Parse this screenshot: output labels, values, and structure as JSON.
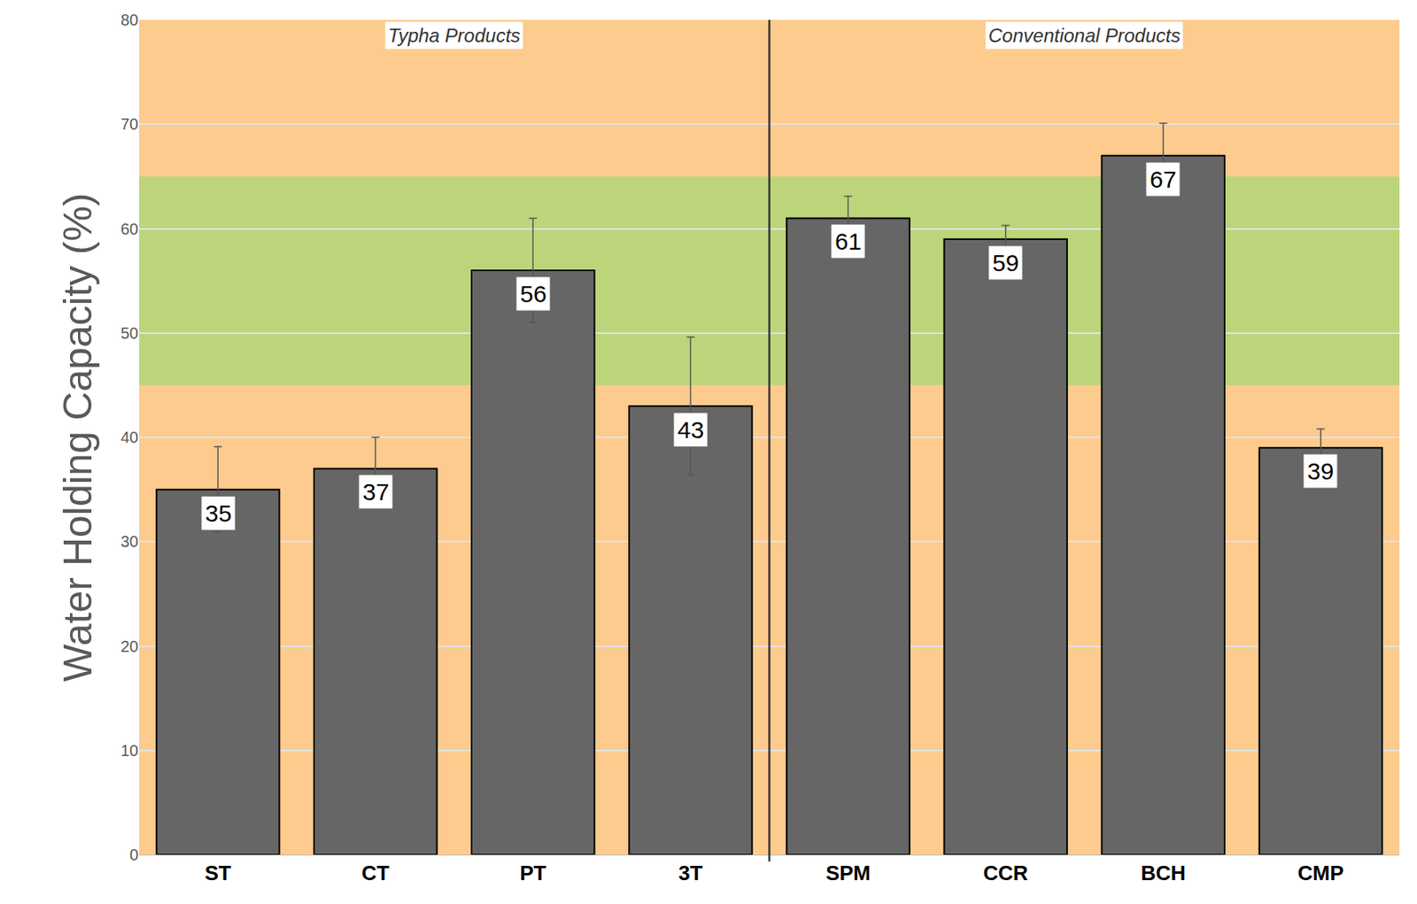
{
  "chart_data": {
    "type": "bar",
    "categories": [
      "ST",
      "CT",
      "PT",
      "3T",
      "SPM",
      "CCR",
      "BCH",
      "CMP"
    ],
    "values": [
      35,
      37,
      56,
      43,
      61,
      59,
      67,
      39
    ],
    "error": [
      4.1,
      3,
      5,
      6.6,
      2.1,
      1.3,
      3.1,
      1.8
    ],
    "color": "#666666",
    "ylabel": "Water Holding Capacity (%)",
    "ylim": [
      0,
      80
    ],
    "yticks": [
      0,
      10,
      20,
      30,
      40,
      50,
      60,
      70,
      80
    ],
    "grid": true,
    "data_labels": true,
    "target_range": [
      45,
      65
    ],
    "groups": [
      {
        "label": "Typha Products",
        "categories": [
          "ST",
          "CT",
          "PT",
          "3T"
        ]
      },
      {
        "label": "Conventional Products",
        "categories": [
          "SPM",
          "CCR",
          "BCH",
          "CMP"
        ]
      }
    ]
  }
}
